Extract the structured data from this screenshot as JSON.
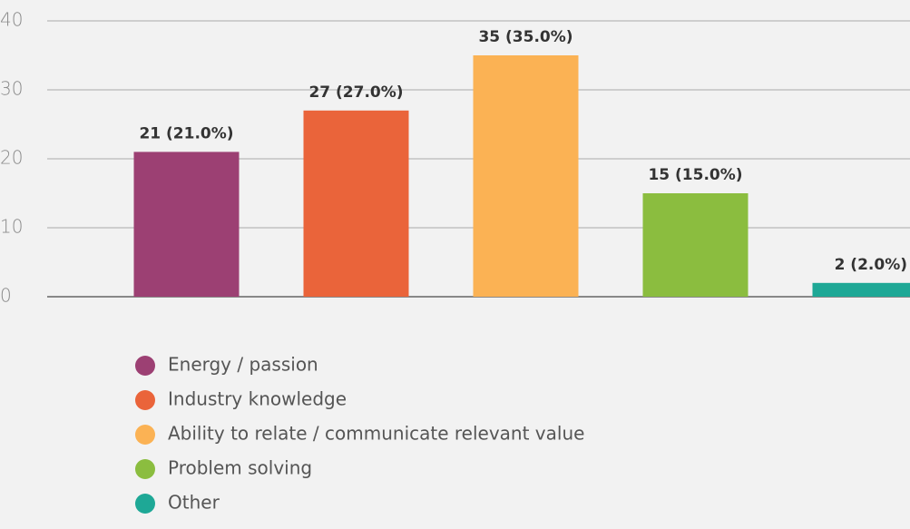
{
  "chart_data": {
    "type": "bar",
    "categories": [
      "Energy / passion",
      "Industry knowledge",
      "Ability to relate / communicate relevant value",
      "Problem solving",
      "Other"
    ],
    "values": [
      21,
      27,
      35,
      15,
      2
    ],
    "value_labels": [
      "21 (21.0%)",
      "27 (27.0%)",
      "35 (35.0%)",
      "15 (15.0%)",
      "2 (2.0%)"
    ],
    "colors": [
      "#9c4073",
      "#ea643a",
      "#fbb254",
      "#8bbd3f",
      "#1ea896"
    ],
    "ylim": [
      0,
      40
    ],
    "yticks": [
      0,
      10,
      20,
      30,
      40
    ],
    "grid": true
  }
}
